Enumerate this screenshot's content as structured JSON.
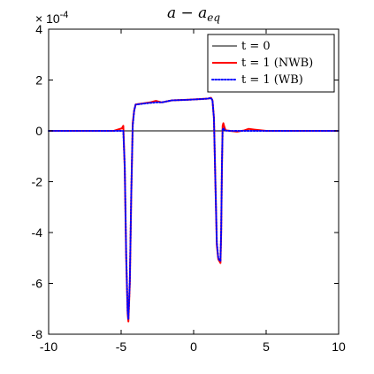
{
  "chart_data": {
    "type": "line",
    "title": "a − a_eq",
    "title_main": "a − a",
    "title_sub": "eq",
    "xlabel": "",
    "ylabel": "",
    "xlim": [
      -10,
      10
    ],
    "ylim": [
      -0.0008,
      0.0004
    ],
    "x_ticks": [
      "-10",
      "-5",
      "0",
      "5",
      "10"
    ],
    "y_ticks": [
      "-8",
      "-6",
      "-4",
      "-2",
      "0",
      "2",
      "4"
    ],
    "y_exponent": {
      "base": "× 10",
      "power": "-4"
    },
    "grid": false,
    "legend": {
      "position": "top-right",
      "entries": [
        "t = 0",
        "t = 1 (NWB)",
        "t = 1 (WB)"
      ]
    },
    "series": [
      {
        "name": "t = 0",
        "color": "#000000",
        "style": "solid",
        "x": [
          -10,
          10
        ],
        "y": [
          0,
          0
        ]
      },
      {
        "name": "t = 1 (NWB)",
        "color": "#ff0000",
        "style": "solid",
        "x": [
          -10,
          -5.5,
          -4.95,
          -4.85,
          -4.75,
          -4.65,
          -4.55,
          -4.5,
          -4.4,
          -4.3,
          -4.2,
          -4.1,
          -4.0,
          -3.5,
          -3.0,
          -2.6,
          -2.2,
          -1.5,
          -0.5,
          0.5,
          1.0,
          1.2,
          1.3,
          1.4,
          1.5,
          1.6,
          1.7,
          1.8,
          1.85,
          1.9,
          1.95,
          2.0,
          2.05,
          2.1,
          2.2,
          2.5,
          3.0,
          3.5,
          3.8,
          4.2,
          5.0,
          6.0,
          10
        ],
        "y": [
          0,
          0,
          1e-05,
          2e-05,
          -0.00015,
          -0.0005,
          -0.00072,
          -0.00075,
          -0.0006,
          -0.00025,
          3e-05,
          8e-05,
          0.000104,
          0.000108,
          0.000112,
          0.000118,
          0.000112,
          0.00012,
          0.000122,
          0.000125,
          0.000127,
          0.00013,
          0.00012,
          5e-05,
          -0.0002,
          -0.00045,
          -0.000505,
          -0.000515,
          -0.00052,
          -0.0004,
          -0.00015,
          2e-05,
          3e-05,
          2e-05,
          2e-06,
          0,
          -3e-06,
          2e-06,
          8e-06,
          5e-06,
          0,
          0,
          0
        ]
      },
      {
        "name": "t = 1 (WB)",
        "color": "#0000ff",
        "style": "dotted",
        "x": [
          -10,
          -5.5,
          -4.95,
          -4.85,
          -4.75,
          -4.65,
          -4.55,
          -4.5,
          -4.4,
          -4.3,
          -4.2,
          -4.1,
          -4.0,
          -3.5,
          -3.0,
          -2.6,
          -2.2,
          -1.5,
          -0.5,
          0.5,
          1.0,
          1.2,
          1.3,
          1.4,
          1.5,
          1.6,
          1.7,
          1.8,
          1.85,
          1.9,
          1.95,
          2.0,
          2.05,
          2.1,
          2.2,
          2.5,
          3.0,
          3.5,
          3.8,
          4.2,
          5.0,
          6.0,
          10
        ],
        "y": [
          0,
          0,
          0,
          0,
          -0.00014,
          -0.00049,
          -0.00071,
          -0.00074,
          -0.00059,
          -0.00024,
          2e-05,
          8e-05,
          0.000103,
          0.000107,
          0.00011,
          0.000112,
          0.000112,
          0.00012,
          0.000122,
          0.000125,
          0.000127,
          0.000129,
          0.00012,
          5e-05,
          -0.0002,
          -0.00044,
          -0.0005,
          -0.00051,
          -0.000512,
          -0.00039,
          -0.00014,
          8e-06,
          1e-05,
          5e-06,
          1e-06,
          0,
          0,
          0,
          0,
          0,
          0,
          0,
          0
        ]
      }
    ]
  }
}
